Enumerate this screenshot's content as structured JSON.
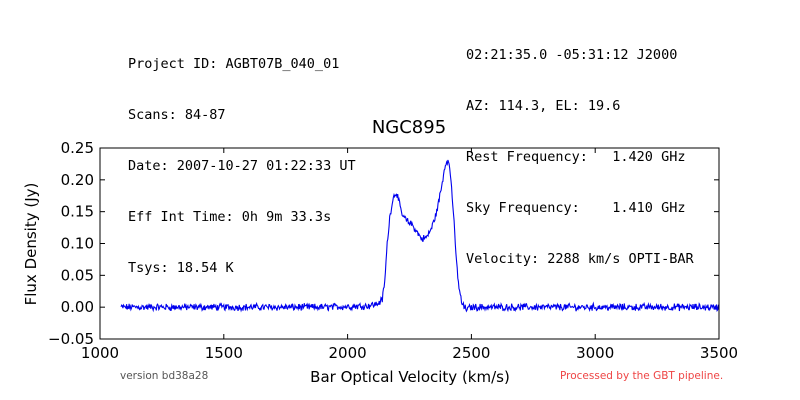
{
  "header": {
    "left_lines": [
      "Project ID: AGBT07B_040_01",
      "Scans: 84-87",
      "Date: 2007-10-27 01:22:33 UT",
      "Eff Int Time: 0h 9m 33.3s",
      "Tsys: 18.54 K"
    ],
    "right_lines": [
      "02:21:35.0 -05:31:12 J2000",
      "AZ: 114.3, EL: 19.6",
      "Rest Frequency:   1.420 GHz",
      "Sky Frequency:    1.410 GHz",
      "Velocity: 2288 km/s OPTI-BAR"
    ]
  },
  "footer": {
    "version": "version bd38a28",
    "pipeline": "Processed by the GBT pipeline."
  },
  "colors": {
    "line": "#0000ee",
    "pipeline_text": "#ee4444",
    "version_text": "#555555"
  },
  "chart_data": {
    "type": "line",
    "title": "NGC895",
    "xlabel": "Bar Optical Velocity (km/s)",
    "ylabel": "Flux Density (Jy)",
    "xlim": [
      1000,
      3500
    ],
    "ylim": [
      -0.05,
      0.25
    ],
    "xticks": [
      1000,
      1500,
      2000,
      2500,
      3000,
      3500
    ],
    "xtick_labels": [
      "1000",
      "1500",
      "2000",
      "2500",
      "3000",
      "3500"
    ],
    "yticks": [
      -0.05,
      0.0,
      0.05,
      0.1,
      0.15,
      0.2,
      0.25
    ],
    "ytick_labels": [
      "−0.05",
      "0.00",
      "0.05",
      "0.10",
      "0.15",
      "0.20",
      "0.25"
    ],
    "grid": false,
    "series": [
      {
        "x": [
          1085,
          1150,
          1300,
          1500,
          1700,
          1900,
          2080,
          2120,
          2140,
          2150,
          2160,
          2170,
          2180,
          2190,
          2200,
          2210,
          2220,
          2240,
          2260,
          2280,
          2300,
          2320,
          2340,
          2360,
          2380,
          2390,
          2400,
          2410,
          2420,
          2430,
          2440,
          2450,
          2460,
          2470,
          2480,
          2500,
          2700,
          2900,
          3100,
          3300,
          3500
        ],
        "y": [
          0.0,
          0.0,
          0.0,
          0.0,
          0.0,
          0.0,
          0.002,
          0.005,
          0.012,
          0.04,
          0.1,
          0.14,
          0.165,
          0.178,
          0.178,
          0.16,
          0.145,
          0.135,
          0.13,
          0.118,
          0.107,
          0.11,
          0.125,
          0.15,
          0.19,
          0.215,
          0.232,
          0.225,
          0.19,
          0.13,
          0.07,
          0.03,
          0.008,
          0.0,
          -0.003,
          0.0,
          0.0,
          0.0,
          0.0,
          0.0,
          0.0
        ]
      }
    ]
  }
}
